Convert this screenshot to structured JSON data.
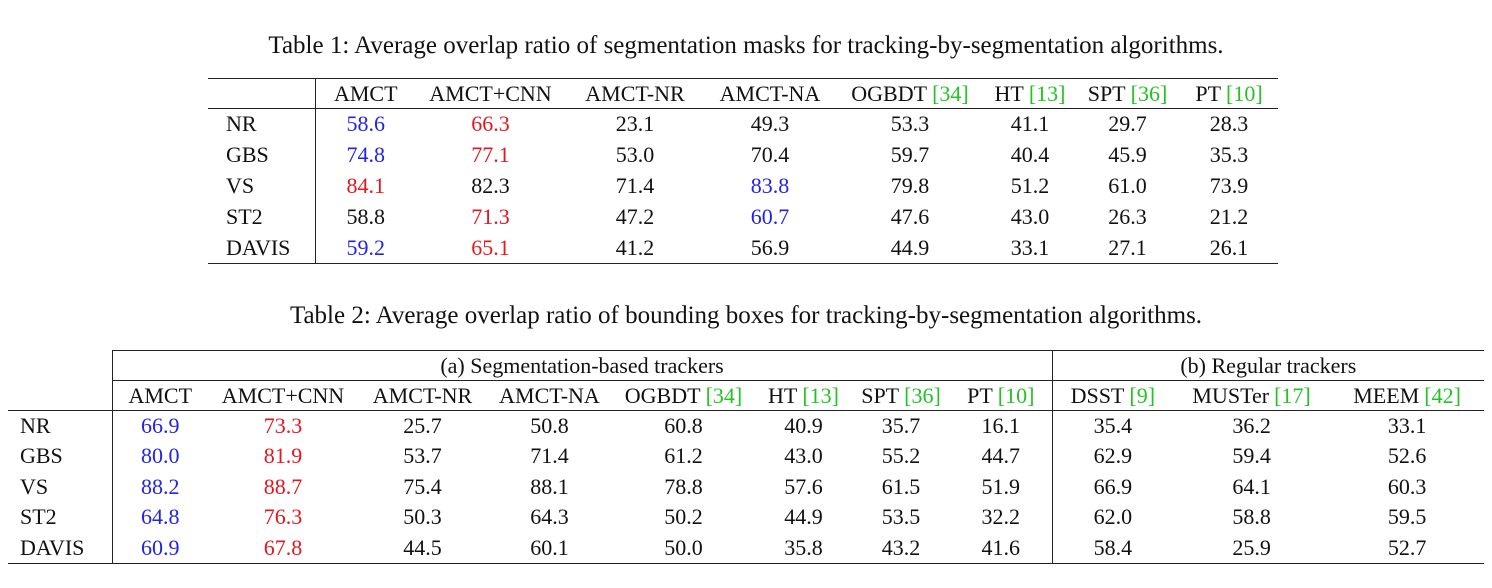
{
  "table1": {
    "caption": "Table 1: Average overlap ratio of segmentation masks for tracking-by-segmentation algorithms.",
    "cite_color": "#22c422",
    "columns": [
      {
        "name": "AMCT"
      },
      {
        "name": "AMCT+CNN"
      },
      {
        "name": "AMCT-NR"
      },
      {
        "name": "AMCT-NA"
      },
      {
        "name": "OGBDT",
        "cite": "[34]"
      },
      {
        "name": "HT",
        "cite": "[13]"
      },
      {
        "name": "SPT",
        "cite": "[36]"
      },
      {
        "name": "PT",
        "cite": "[10]"
      }
    ],
    "rows": [
      {
        "label": "NR",
        "cells": [
          {
            "text": "58.6",
            "color": "#2323e6"
          },
          {
            "text": "66.3",
            "color": "#e3171e"
          },
          {
            "text": "23.1"
          },
          {
            "text": "49.3"
          },
          {
            "text": "53.3"
          },
          {
            "text": "41.1"
          },
          {
            "text": "29.7"
          },
          {
            "text": "28.3"
          }
        ]
      },
      {
        "label": "GBS",
        "cells": [
          {
            "text": "74.8",
            "color": "#2323e6"
          },
          {
            "text": "77.1",
            "color": "#e3171e"
          },
          {
            "text": "53.0"
          },
          {
            "text": "70.4"
          },
          {
            "text": "59.7"
          },
          {
            "text": "40.4"
          },
          {
            "text": "45.9"
          },
          {
            "text": "35.3"
          }
        ]
      },
      {
        "label": "VS",
        "cells": [
          {
            "text": "84.1",
            "color": "#e3171e"
          },
          {
            "text": "82.3"
          },
          {
            "text": "71.4"
          },
          {
            "text": "83.8",
            "color": "#2323e6"
          },
          {
            "text": "79.8"
          },
          {
            "text": "51.2"
          },
          {
            "text": "61.0"
          },
          {
            "text": "73.9"
          }
        ]
      },
      {
        "label": "ST2",
        "cells": [
          {
            "text": "58.8"
          },
          {
            "text": "71.3",
            "color": "#e3171e"
          },
          {
            "text": "47.2"
          },
          {
            "text": "60.7",
            "color": "#2323e6"
          },
          {
            "text": "47.6"
          },
          {
            "text": "43.0"
          },
          {
            "text": "26.3"
          },
          {
            "text": "21.2"
          }
        ]
      },
      {
        "label": "DAVIS",
        "cells": [
          {
            "text": "59.2",
            "color": "#2323e6"
          },
          {
            "text": "65.1",
            "color": "#e3171e"
          },
          {
            "text": "41.2"
          },
          {
            "text": "56.9"
          },
          {
            "text": "44.9"
          },
          {
            "text": "33.1"
          },
          {
            "text": "27.1"
          },
          {
            "text": "26.1"
          }
        ]
      }
    ]
  },
  "table2": {
    "caption": "Table 2: Average overlap ratio of bounding boxes for tracking-by-segmentation algorithms.",
    "cite_color": "#22c422",
    "groups": [
      {
        "title": "(a) Segmentation-based trackers",
        "columns": [
          {
            "name": "AMCT"
          },
          {
            "name": "AMCT+CNN"
          },
          {
            "name": "AMCT-NR"
          },
          {
            "name": "AMCT-NA"
          },
          {
            "name": "OGBDT",
            "cite": "[34]"
          },
          {
            "name": "HT",
            "cite": "[13]"
          },
          {
            "name": "SPT",
            "cite": "[36]"
          },
          {
            "name": "PT",
            "cite": "[10]"
          }
        ]
      },
      {
        "title": "(b) Regular trackers",
        "columns": [
          {
            "name": "DSST",
            "cite": "[9]"
          },
          {
            "name": "MUSTer",
            "cite": "[17]"
          },
          {
            "name": "MEEM",
            "cite": "[42]"
          }
        ]
      }
    ],
    "rows": [
      {
        "label": "NR",
        "cells": [
          {
            "text": "66.9",
            "color": "#2323e6"
          },
          {
            "text": "73.3",
            "color": "#e3171e"
          },
          {
            "text": "25.7"
          },
          {
            "text": "50.8"
          },
          {
            "text": "60.8"
          },
          {
            "text": "40.9"
          },
          {
            "text": "35.7"
          },
          {
            "text": "16.1"
          },
          {
            "text": "35.4"
          },
          {
            "text": "36.2"
          },
          {
            "text": "33.1"
          }
        ]
      },
      {
        "label": "GBS",
        "cells": [
          {
            "text": "80.0",
            "color": "#2323e6"
          },
          {
            "text": "81.9",
            "color": "#e3171e"
          },
          {
            "text": "53.7"
          },
          {
            "text": "71.4"
          },
          {
            "text": "61.2"
          },
          {
            "text": "43.0"
          },
          {
            "text": "55.2"
          },
          {
            "text": "44.7"
          },
          {
            "text": "62.9"
          },
          {
            "text": "59.4"
          },
          {
            "text": "52.6"
          }
        ]
      },
      {
        "label": "VS",
        "cells": [
          {
            "text": "88.2",
            "color": "#2323e6"
          },
          {
            "text": "88.7",
            "color": "#e3171e"
          },
          {
            "text": "75.4"
          },
          {
            "text": "88.1"
          },
          {
            "text": "78.8"
          },
          {
            "text": "57.6"
          },
          {
            "text": "61.5"
          },
          {
            "text": "51.9"
          },
          {
            "text": "66.9"
          },
          {
            "text": "64.1"
          },
          {
            "text": "60.3"
          }
        ]
      },
      {
        "label": "ST2",
        "cells": [
          {
            "text": "64.8",
            "color": "#2323e6"
          },
          {
            "text": "76.3",
            "color": "#e3171e"
          },
          {
            "text": "50.3"
          },
          {
            "text": "64.3"
          },
          {
            "text": "50.2"
          },
          {
            "text": "44.9"
          },
          {
            "text": "53.5"
          },
          {
            "text": "32.2"
          },
          {
            "text": "62.0"
          },
          {
            "text": "58.8"
          },
          {
            "text": "59.5"
          }
        ]
      },
      {
        "label": "DAVIS",
        "cells": [
          {
            "text": "60.9",
            "color": "#2323e6"
          },
          {
            "text": "67.8",
            "color": "#e3171e"
          },
          {
            "text": "44.5"
          },
          {
            "text": "60.1"
          },
          {
            "text": "50.0"
          },
          {
            "text": "35.8"
          },
          {
            "text": "43.2"
          },
          {
            "text": "41.6"
          },
          {
            "text": "58.4"
          },
          {
            "text": "25.9"
          },
          {
            "text": "52.7"
          }
        ]
      }
    ]
  }
}
